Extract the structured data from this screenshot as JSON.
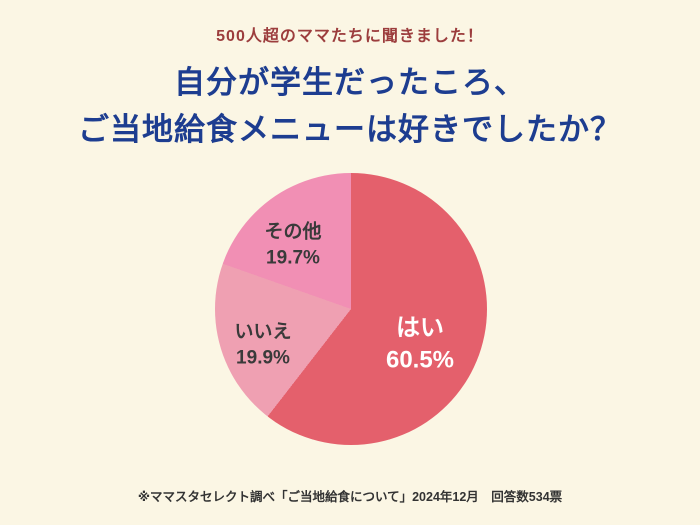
{
  "page": {
    "background_color": "#FBF6E4"
  },
  "header": {
    "kicker": "500人超のママたちに聞きました！",
    "kicker_color": "#9C3D3D",
    "title_line1": "自分が学生だったころ、",
    "title_line2": "ご当地給食メニューは好きでしたか？",
    "title_color": "#1D3D90"
  },
  "chart_data": {
    "type": "pie",
    "title": "自分が学生だったころ、ご当地給食メニューは好きでしたか？",
    "start_angle_deg": 0,
    "direction": "clockwise",
    "legend_position": "inside-slices",
    "slices": [
      {
        "label": "はい",
        "value": 60.5,
        "pct_text": "60.5%",
        "color": "#E4606C",
        "text_color": "#FFFFFF"
      },
      {
        "label": "いいえ",
        "value": 19.9,
        "pct_text": "19.9%",
        "color": "#EFA0B2",
        "text_color": "#3A3A3A"
      },
      {
        "label": "その他",
        "value": 19.7,
        "pct_text": "19.7%",
        "color": "#F18FB4",
        "text_color": "#3A3A3A"
      }
    ]
  },
  "footer": {
    "note": "※ママスタセレクト調べ「ご当地給食について」2024年12月　回答数534票"
  }
}
